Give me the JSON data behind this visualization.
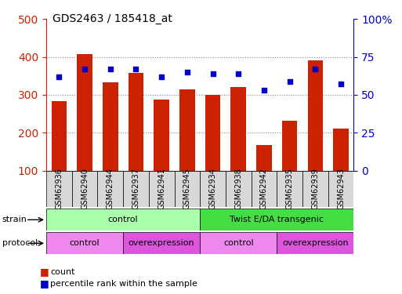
{
  "title": "GDS2463 / 185418_at",
  "samples": [
    "GSM62936",
    "GSM62940",
    "GSM62944",
    "GSM62937",
    "GSM62941",
    "GSM62945",
    "GSM62934",
    "GSM62938",
    "GSM62942",
    "GSM62935",
    "GSM62939",
    "GSM62943"
  ],
  "counts": [
    283,
    408,
    332,
    358,
    288,
    315,
    300,
    320,
    168,
    232,
    390,
    210
  ],
  "percentiles": [
    62,
    67,
    67,
    67,
    62,
    65,
    64,
    64,
    53,
    59,
    67,
    57
  ],
  "bar_color": "#cc2200",
  "dot_color": "#0000cc",
  "ylim_left": [
    100,
    500
  ],
  "ylim_right": [
    0,
    100
  ],
  "yticks_left": [
    100,
    200,
    300,
    400,
    500
  ],
  "yticks_right": [
    0,
    25,
    50,
    75,
    100
  ],
  "yticklabels_right": [
    "0",
    "25",
    "50",
    "75",
    "100%"
  ],
  "grid_color": "#888888",
  "strain_groups": [
    {
      "label": "control",
      "start": 0,
      "end": 6,
      "color": "#aaffaa"
    },
    {
      "label": "Twist E/DA transgenic",
      "start": 6,
      "end": 12,
      "color": "#44dd44"
    }
  ],
  "protocol_groups": [
    {
      "label": "control",
      "start": 0,
      "end": 3,
      "color": "#ee88ee"
    },
    {
      "label": "overexpression",
      "start": 3,
      "end": 6,
      "color": "#dd55dd"
    },
    {
      "label": "control",
      "start": 6,
      "end": 9,
      "color": "#ee88ee"
    },
    {
      "label": "overexpression",
      "start": 9,
      "end": 12,
      "color": "#dd55dd"
    }
  ],
  "tick_label_color_left": "#cc2200",
  "tick_label_color_right": "#0000cc"
}
